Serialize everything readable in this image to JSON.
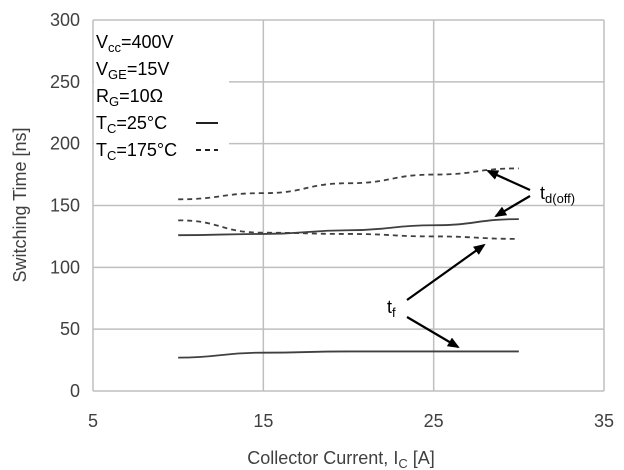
{
  "chart_data": {
    "type": "line",
    "x_axis": {
      "label_main": "Collector Current, I",
      "label_sub": "C",
      "label_unit": " [A]",
      "ticks": [
        5,
        15,
        25,
        35
      ],
      "tick_labels": [
        "5",
        "15",
        "25",
        "35"
      ],
      "range": [
        5,
        35
      ]
    },
    "y_axis": {
      "label": "Switching Time [ns]",
      "ticks": [
        0,
        50,
        100,
        150,
        200,
        250,
        300
      ],
      "tick_labels": [
        "0",
        "50",
        "100",
        "150",
        "200",
        "250",
        "300"
      ],
      "range": [
        0,
        300
      ]
    },
    "grid": true,
    "series": [
      {
        "name": "td(off) Tc=175°C",
        "style": "dashed",
        "x": [
          10,
          15,
          20,
          25,
          30
        ],
        "y": [
          155,
          160,
          168,
          175,
          180
        ]
      },
      {
        "name": "td(off) Tc=25°C",
        "style": "solid",
        "x": [
          10,
          15,
          20,
          25,
          30
        ],
        "y": [
          126,
          127,
          130,
          134,
          139
        ]
      },
      {
        "name": "tf Tc=175°C",
        "style": "dashed",
        "x": [
          10,
          15,
          20,
          25,
          30
        ],
        "y": [
          138,
          128,
          127,
          125,
          123
        ]
      },
      {
        "name": "tf Tc=25°C",
        "style": "solid",
        "x": [
          10,
          15,
          20,
          25,
          30
        ],
        "y": [
          27,
          31,
          32,
          32,
          32
        ]
      }
    ],
    "legend": {
      "position": "top-left",
      "lines": [
        {
          "main": "V",
          "sub": "cc",
          "rest": "=400V"
        },
        {
          "main": "V",
          "sub": "GE",
          "rest": "=15V"
        },
        {
          "main": "R",
          "sub": "G",
          "rest": "=10Ω"
        },
        {
          "main": "T",
          "sub": "C",
          "rest": "=25°C",
          "style": "solid"
        },
        {
          "main": "T",
          "sub": "C",
          "rest": "=175°C",
          "style": "dashed"
        }
      ]
    },
    "annotations": [
      {
        "main": "t",
        "sub": "d(off)"
      },
      {
        "main": "t",
        "sub": "f"
      }
    ]
  },
  "colors": {
    "line": "#404040",
    "grid": "#bfbfbf",
    "text": "#404040",
    "arrow": "#000000"
  }
}
